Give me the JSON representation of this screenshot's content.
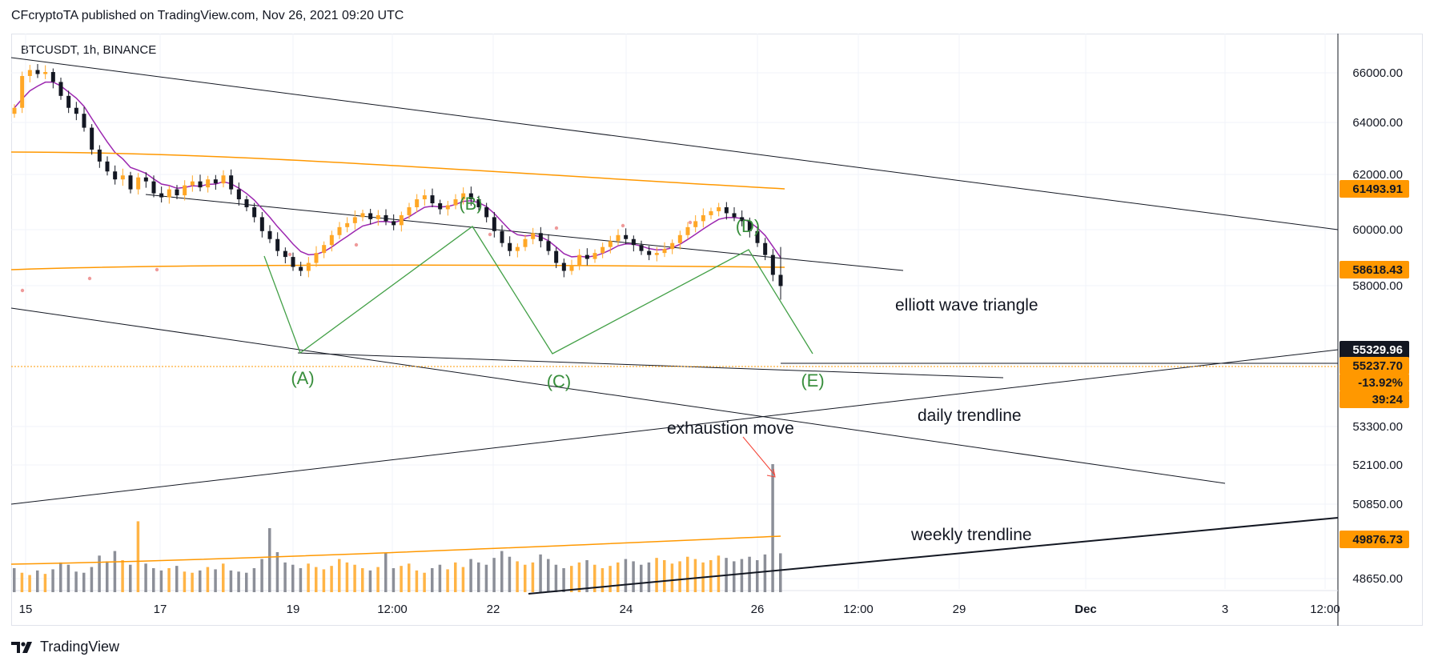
{
  "header": {
    "published_by": "CFcryptoTA published on TradingView.com, Nov 26, 2021 09:20 UTC",
    "symbol_line": "BTCUSDT, 1h, BINANCE"
  },
  "footer": {
    "brand": "TradingView",
    "logo_icon": "tradingview-logo-icon"
  },
  "colors": {
    "candle_up": "#ffa726",
    "candle_down": "#131722",
    "wave_label": "#388e3c",
    "wave_line": "#43a047",
    "ema_fast": "#9c27b0",
    "ma_slow": "#ff9800",
    "trendline": "#131722",
    "last_price_line": "#ff9800",
    "arrow": "#f44336",
    "axis_text": "#131722",
    "grid": "#f0f3fa"
  },
  "chart_data": {
    "type": "candlestick",
    "symbol": "BTCUSDT",
    "timeframe": "1h",
    "exchange": "BINANCE",
    "x_ticks": [
      "15",
      "17",
      "19",
      "12:00",
      "22",
      "24",
      "26",
      "12:00",
      "29",
      "Dec",
      "3",
      "12:00"
    ],
    "y_ticks": [
      "66000.00",
      "64000.00",
      "62000.00",
      "60000.00",
      "58000.00",
      "53300.00",
      "52100.00",
      "50850.00",
      "48650.00"
    ],
    "price_badges": [
      {
        "label": "61493.91",
        "style": "orange"
      },
      {
        "label": "58618.43",
        "style": "orange"
      },
      {
        "label": "55329.96",
        "style": "dark"
      },
      {
        "label": "55237.70",
        "style": "orange"
      },
      {
        "label": "-13.92%",
        "style": "orange"
      },
      {
        "label": "39:24",
        "style": "orange"
      },
      {
        "label": "49876.73",
        "style": "orange"
      }
    ],
    "close_series": [
      64200,
      65800,
      66100,
      65900,
      66000,
      65500,
      64800,
      64200,
      63900,
      63200,
      62100,
      61500,
      61000,
      60600,
      60800,
      60100,
      60700,
      60500,
      59900,
      59700,
      60100,
      59800,
      60300,
      60500,
      60200,
      60600,
      60400,
      60800,
      60100,
      59600,
      59200,
      58700,
      58000,
      57600,
      57000,
      56700,
      56200,
      56000,
      56400,
      56900,
      57300,
      57800,
      58200,
      58400,
      58700,
      58900,
      58600,
      58800,
      58500,
      58300,
      58800,
      59200,
      59600,
      59800,
      59400,
      59100,
      59300,
      59600,
      59900,
      59600,
      59200,
      58700,
      58000,
      57400,
      57000,
      57200,
      57600,
      57900,
      57500,
      57000,
      56400,
      56000,
      56300,
      56800,
      56600,
      56900,
      57200,
      57500,
      57800,
      57600,
      57300,
      57000,
      56800,
      56900,
      57100,
      57400,
      57800,
      58200,
      58500,
      58800,
      59000,
      59200,
      58900,
      58700,
      58500,
      58000,
      57400,
      56800,
      55800,
      55237
    ],
    "volume_series": [
      2100,
      1700,
      1500,
      1900,
      1600,
      2000,
      2600,
      2400,
      1800,
      1700,
      2200,
      3200,
      2700,
      3600,
      2800,
      2400,
      6200,
      2500,
      2100,
      1900,
      2100,
      2300,
      1800,
      1700,
      1900,
      2200,
      2000,
      2500,
      1900,
      1800,
      1700,
      2100,
      2900,
      5600,
      3500,
      2600,
      2400,
      2100,
      2500,
      2200,
      2000,
      2300,
      2900,
      2600,
      2400,
      2100,
      1900,
      2200,
      3400,
      2100,
      2300,
      2500,
      1900,
      1700,
      2100,
      2400,
      2000,
      2600,
      2200,
      2900,
      2600,
      2400,
      3000,
      3600,
      3100,
      2700,
      2400,
      2600,
      3300,
      2900,
      2400,
      2100,
      2300,
      2600,
      2800,
      2400,
      2100,
      2300,
      2600,
      2900,
      2700,
      2400,
      2600,
      3000,
      2800,
      2500,
      2700,
      3100,
      2900,
      2600,
      2800,
      3200,
      3000,
      2700,
      2900,
      3100,
      2800,
      3300,
      11200,
      3400
    ],
    "indicators": [
      {
        "name": "fast EMA",
        "color": "#9c27b0"
      },
      {
        "name": "slow MA",
        "color": "#ff9800"
      },
      {
        "name": "volume MA",
        "color": "#ff9800"
      }
    ],
    "annotations": {
      "wave_labels": [
        "(A)",
        "(B)",
        "(C)",
        "(D)",
        "(E)"
      ],
      "texts": [
        "elliott wave triangle",
        "daily trendline",
        "exhaustion move",
        "weekly trendline"
      ]
    }
  }
}
